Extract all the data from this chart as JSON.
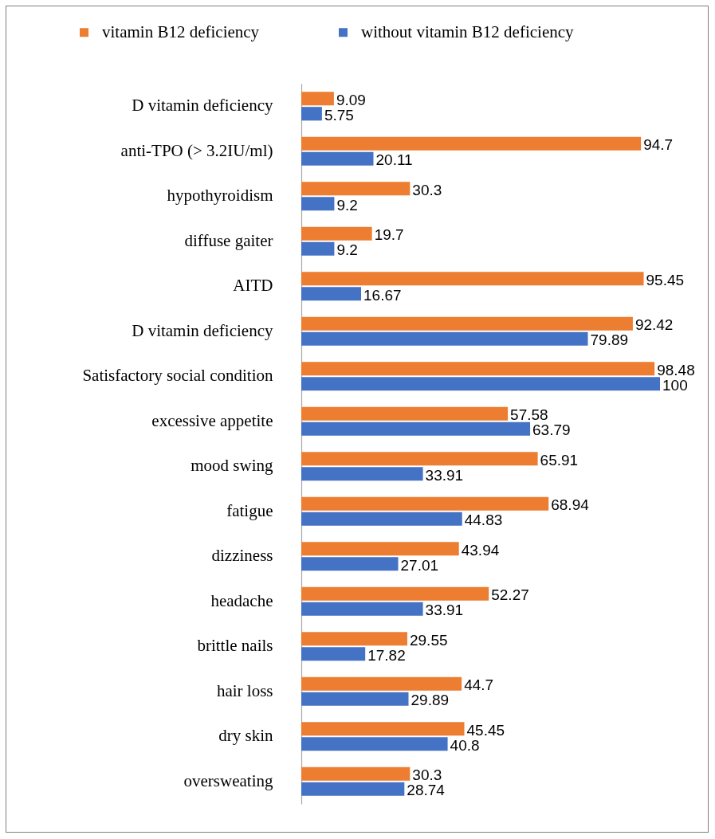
{
  "chart_data": {
    "type": "bar",
    "orientation": "horizontal",
    "categories": [
      "D vitamin deficiency",
      "anti-TPO (> 3.2IU/ml)",
      "hypothyroidism",
      "diffuse gaiter",
      "AITD",
      "D vitamin deficiency",
      "Satisfactory social condition",
      "excessive appetite",
      "mood swing",
      "fatigue",
      "dizziness",
      "headache",
      "brittle nails",
      "hair loss",
      "dry skin",
      "oversweating"
    ],
    "series": [
      {
        "name": "vitamin B12 deficiency",
        "color": "#ed7d31",
        "values": [
          9.09,
          94.7,
          30.3,
          19.7,
          95.45,
          92.42,
          98.48,
          57.58,
          65.91,
          68.94,
          43.94,
          52.27,
          29.55,
          44.7,
          45.45,
          30.3
        ]
      },
      {
        "name": "without vitamin B12 deficiency",
        "color": "#4472c4",
        "values": [
          5.75,
          20.11,
          9.2,
          9.2,
          16.67,
          79.89,
          100,
          63.79,
          33.91,
          44.83,
          27.01,
          33.91,
          17.82,
          29.89,
          40.8,
          28.74
        ]
      }
    ],
    "data_labels": true,
    "legend": "top left",
    "tick_labels": "y"
  }
}
